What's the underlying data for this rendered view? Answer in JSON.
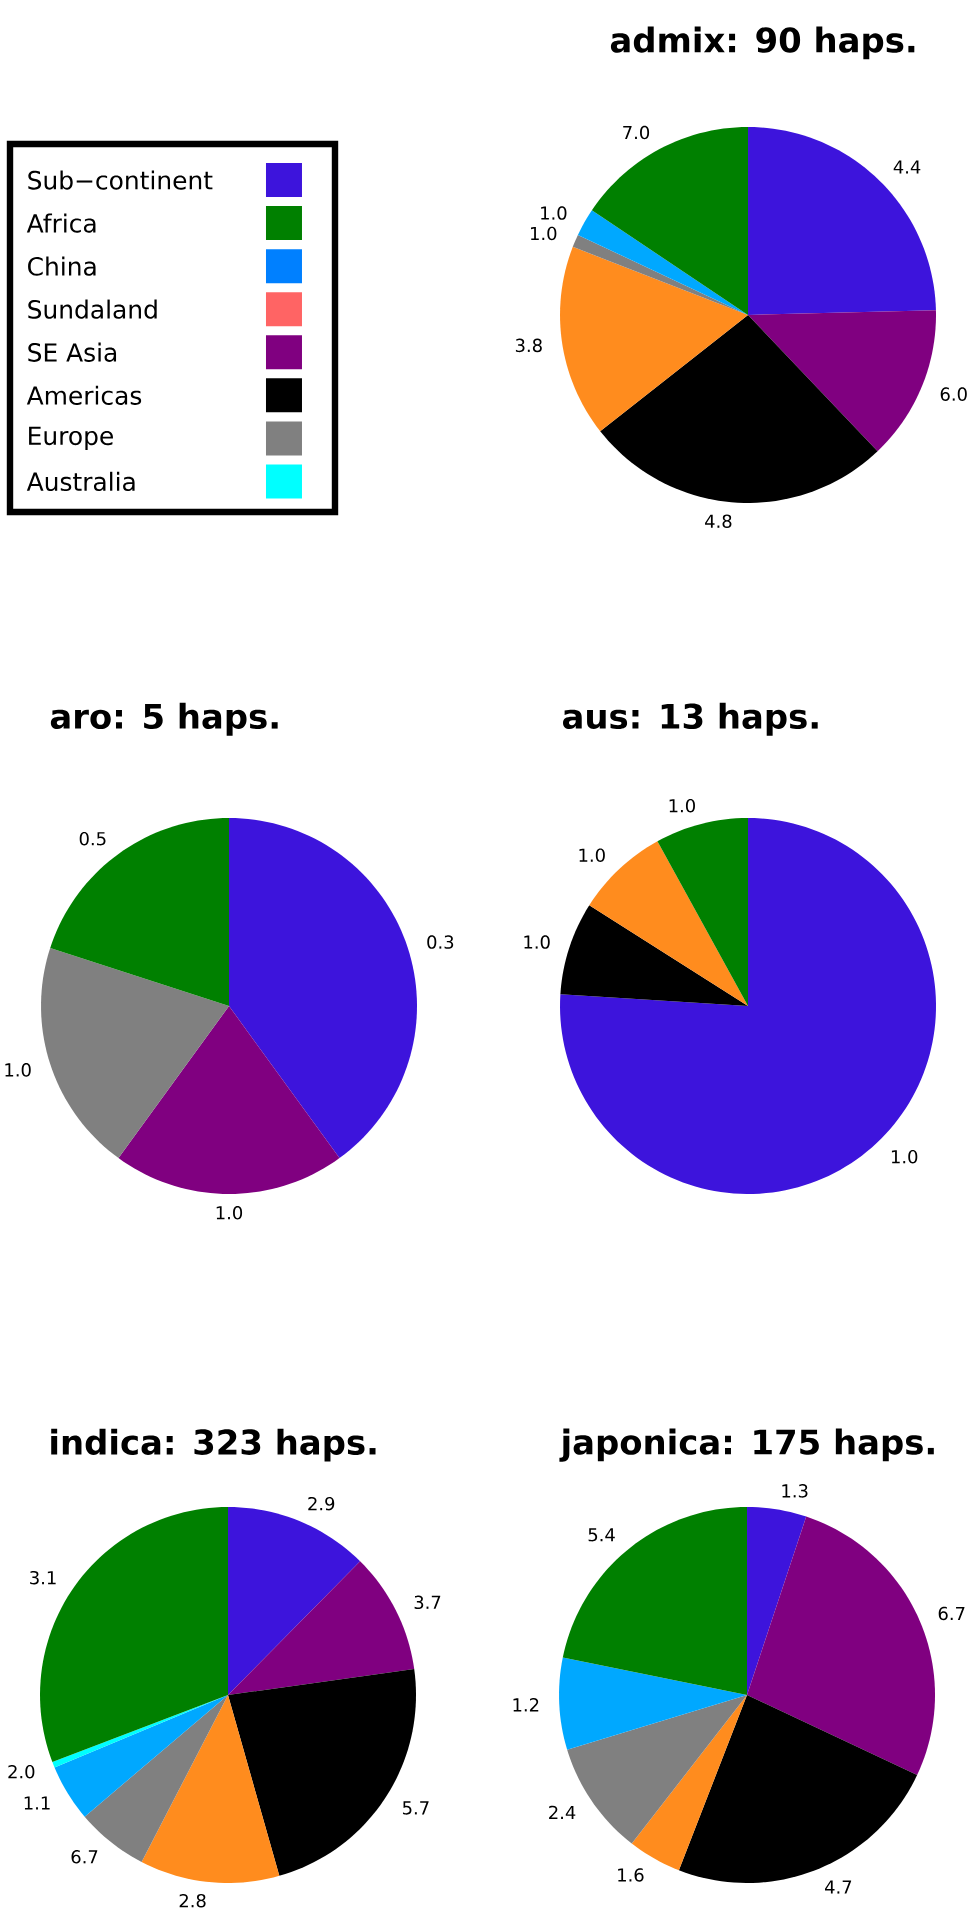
{
  "chart_data": [
    {
      "type": "other",
      "categories": [
        "Sub−continent",
        "Africa",
        "China",
        "Sundaland",
        "SE Asia",
        "Americas",
        "Europe",
        "Australia"
      ],
      "colors": [
        "#3d14dc",
        "#008000",
        "#0080ff",
        "#ff6464",
        "#800080",
        "#000000",
        "#808080",
        "#00ffff"
      ]
    },
    {
      "type": "pie",
      "title": "admix: 90 haps.",
      "categories": [
        "4.4",
        "6.0",
        "4.8",
        "3.8",
        "1.0",
        "1.0",
        "7.0"
      ],
      "values": [
        24.6,
        13.3,
        26.5,
        16.5,
        1.1,
        2.4,
        15.6
      ],
      "colors": [
        "#3d14dc",
        "#800080",
        "#000000",
        "#ff8c1e",
        "#808080",
        "#00a8ff",
        "#008000"
      ]
    },
    {
      "type": "pie",
      "title": "aro: 5 haps.",
      "categories": [
        "0.3",
        "1.0",
        "1.0",
        "0.5"
      ],
      "values": [
        40,
        20,
        20,
        20
      ],
      "colors": [
        "#3d14dc",
        "#800080",
        "#808080",
        "#008000"
      ]
    },
    {
      "type": "pie",
      "title": "aus: 13 haps.",
      "categories": [
        "1.0",
        "1.0",
        "1.0",
        "1.0"
      ],
      "values": [
        76,
        8,
        8,
        8
      ],
      "colors": [
        "#3d14dc",
        "#000000",
        "#ff8c1e",
        "#008000"
      ]
    },
    {
      "type": "pie",
      "title": "indica: 323 haps.",
      "categories": [
        "2.9",
        "3.7",
        "5.7",
        "2.8",
        "6.7",
        "1.1",
        "2.0",
        "3.1"
      ],
      "values": [
        12.4,
        10.4,
        22.8,
        12.0,
        6.2,
        4.9,
        0.5,
        30.8
      ],
      "colors": [
        "#3d14dc",
        "#800080",
        "#000000",
        "#ff8c1e",
        "#808080",
        "#00a8ff",
        "#00ffff",
        "#008000"
      ]
    },
    {
      "type": "pie",
      "title": "japonica: 175 haps.",
      "categories": [
        "1.3",
        "6.7",
        "4.7",
        "1.6",
        "2.4",
        "1.2",
        "5.4"
      ],
      "values": [
        5.1,
        26.9,
        23.9,
        4.6,
        9.8,
        7.9,
        21.8
      ],
      "colors": [
        "#3d14dc",
        "#800080",
        "#000000",
        "#ff8c1e",
        "#808080",
        "#00a8ff",
        "#008000"
      ]
    }
  ]
}
